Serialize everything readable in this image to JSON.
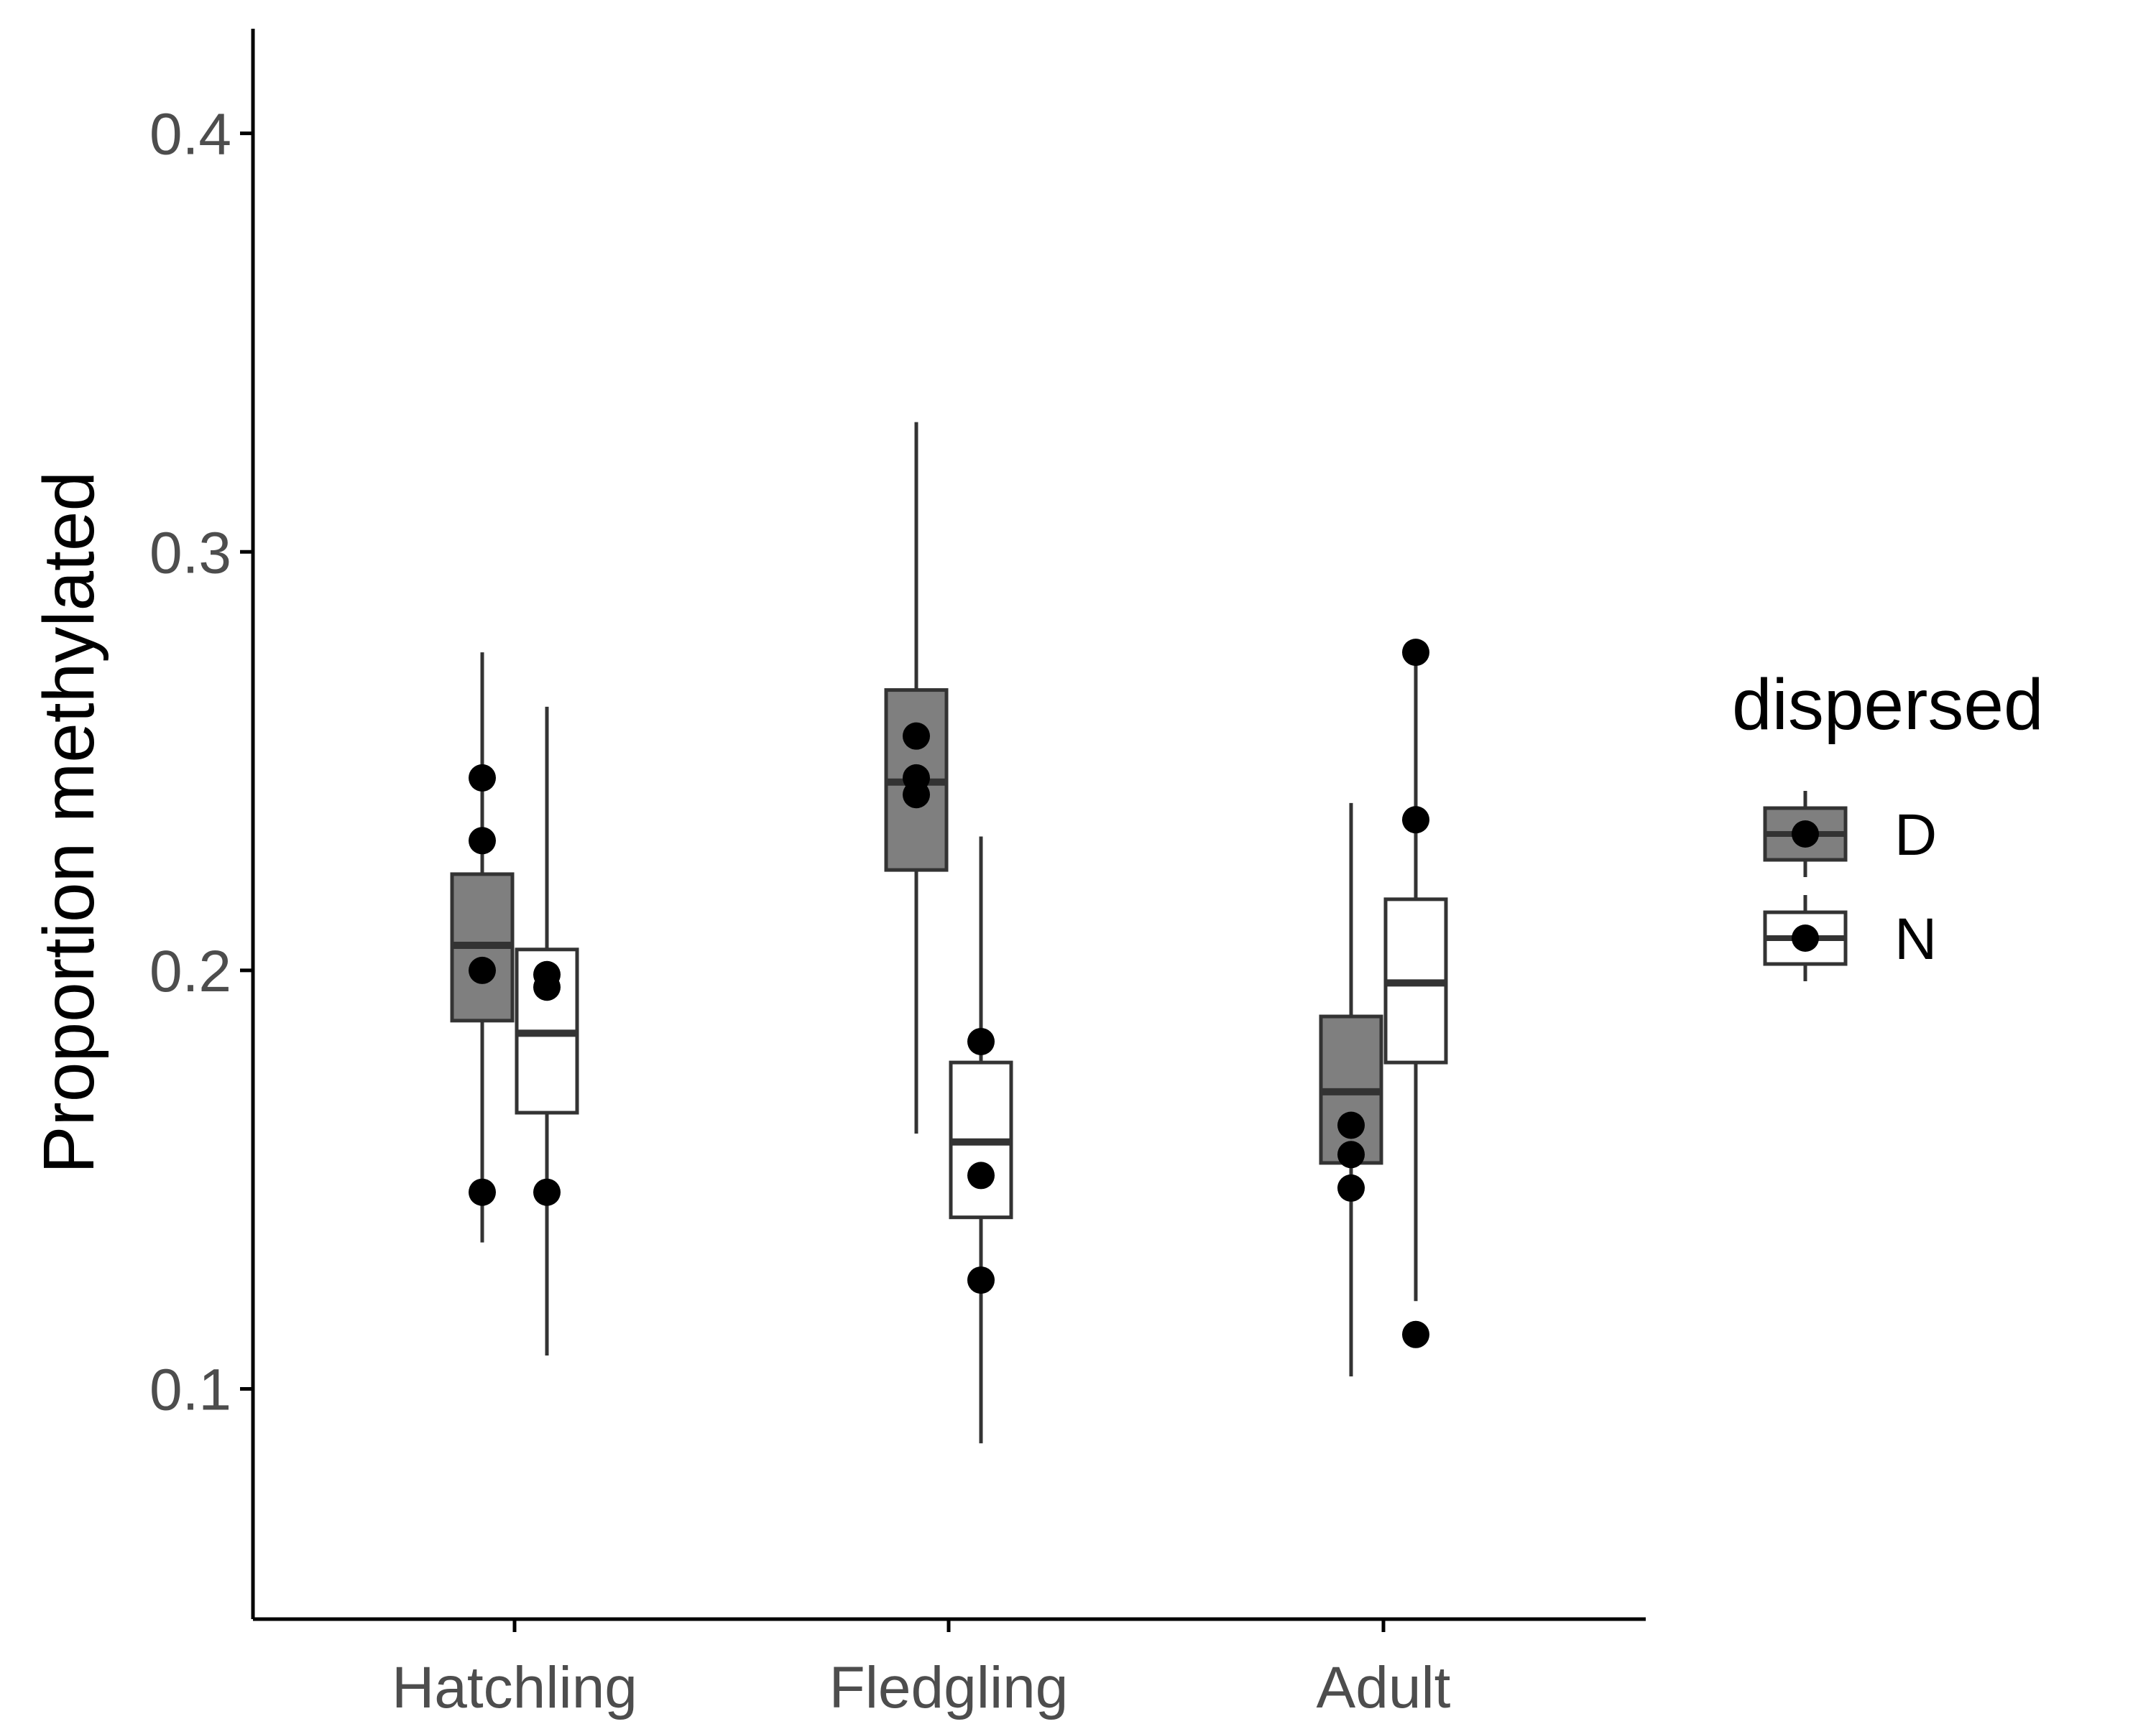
{
  "chart_data": {
    "type": "boxplot",
    "title": "",
    "xlabel": "",
    "ylabel": "Proportion methylated",
    "ylim": [
      0.045,
      0.425
    ],
    "yticks": [
      0.1,
      0.2,
      0.3,
      0.4
    ],
    "ytick_labels": [
      "0.1",
      "0.2",
      "0.3",
      "0.4"
    ],
    "categories": [
      "Hatchling",
      "Fledgling",
      "Adult"
    ],
    "legend": {
      "title": "dispersed",
      "position": "right"
    },
    "colors": {
      "D": "#7f7f7f",
      "N": "#ffffff",
      "outline": "#333333",
      "points": "#000000"
    },
    "series": [
      {
        "name": "D",
        "boxes": [
          {
            "category": "Hatchling",
            "whisker_low": 0.135,
            "q1": 0.188,
            "median": 0.206,
            "q3": 0.223,
            "whisker_high": 0.276,
            "points": [
              0.246,
              0.231,
              0.2,
              0.147
            ]
          },
          {
            "category": "Fledgling",
            "whisker_low": 0.161,
            "q1": 0.224,
            "median": 0.245,
            "q3": 0.267,
            "whisker_high": 0.331,
            "points": [
              0.256,
              0.246,
              0.242
            ]
          },
          {
            "category": "Adult",
            "whisker_low": 0.103,
            "q1": 0.154,
            "median": 0.171,
            "q3": 0.189,
            "whisker_high": 0.24,
            "points": [
              0.163,
              0.156,
              0.148
            ]
          }
        ]
      },
      {
        "name": "N",
        "boxes": [
          {
            "category": "Hatchling",
            "whisker_low": 0.108,
            "q1": 0.166,
            "median": 0.185,
            "q3": 0.205,
            "whisker_high": 0.263,
            "points": [
              0.199,
              0.196,
              0.147
            ]
          },
          {
            "category": "Fledgling",
            "whisker_low": 0.087,
            "q1": 0.141,
            "median": 0.159,
            "q3": 0.178,
            "whisker_high": 0.232,
            "points": [
              0.183,
              0.151,
              0.126
            ]
          },
          {
            "category": "Adult",
            "whisker_low": 0.121,
            "q1": 0.178,
            "median": 0.197,
            "q3": 0.217,
            "whisker_high": 0.276,
            "points": [
              0.276,
              0.236,
              0.113
            ]
          }
        ]
      }
    ]
  }
}
